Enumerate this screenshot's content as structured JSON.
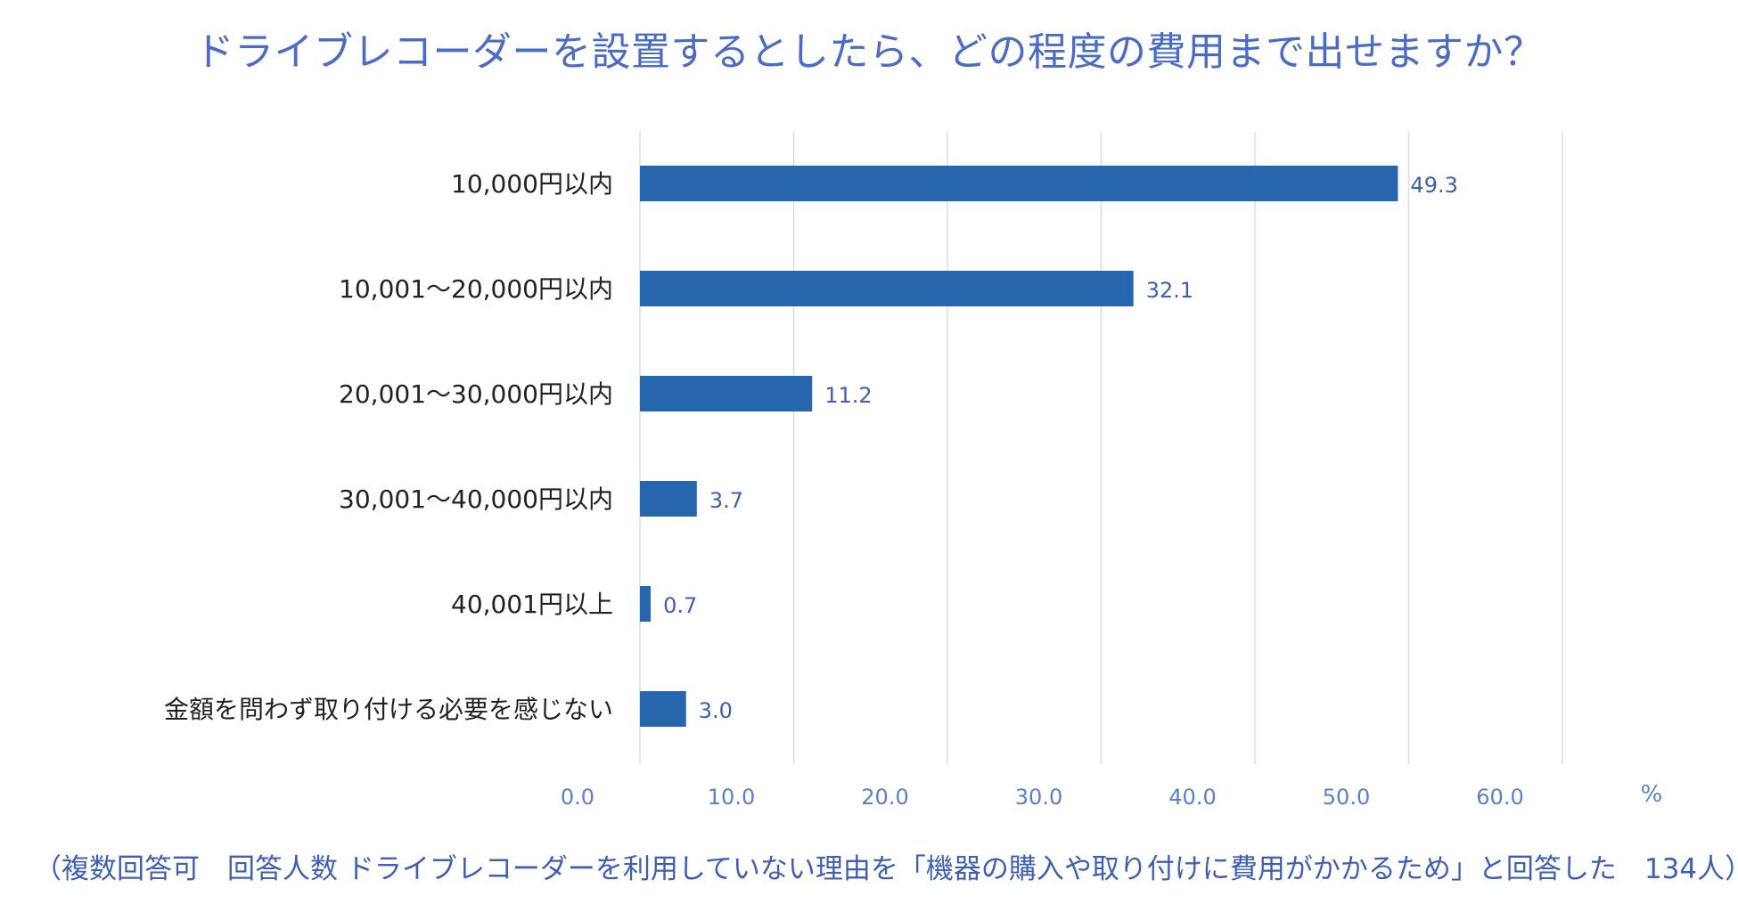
{
  "chart_data": {
    "type": "bar",
    "orientation": "horizontal",
    "title": "ドライブレコーダーを設置するとしたら、どの程度の費用まで出せますか？",
    "categories": [
      "10,000円以内",
      "10,001～20,000円以内",
      "20,001～30,000円以内",
      "30,001～40,000円以内",
      "40,001円以上",
      "金額を問わず取り付ける必要を感じない"
    ],
    "values": [
      49.3,
      32.1,
      11.2,
      3.7,
      0.7,
      3.0
    ],
    "value_labels": [
      "49.3",
      "32.1",
      "11.2",
      "3.7",
      "0.7",
      "3.0"
    ],
    "xlim": [
      0,
      60
    ],
    "x_ticks": [
      "0.0",
      "10.0",
      "20.0",
      "30.0",
      "40.0",
      "50.0",
      "60.0"
    ],
    "x_unit": "%",
    "grid": true,
    "bar_color": "#2566ac",
    "label_color": "#3f5fb4",
    "axis_label_color": "#5a7fd0",
    "gridline_color": "#d9dde8"
  },
  "footnote": "（複数回答可　回答人数 ドライブレコーダーを利用していない理由を「機器の購入や取り付けに費用がかかるため」と回答した　134人）"
}
